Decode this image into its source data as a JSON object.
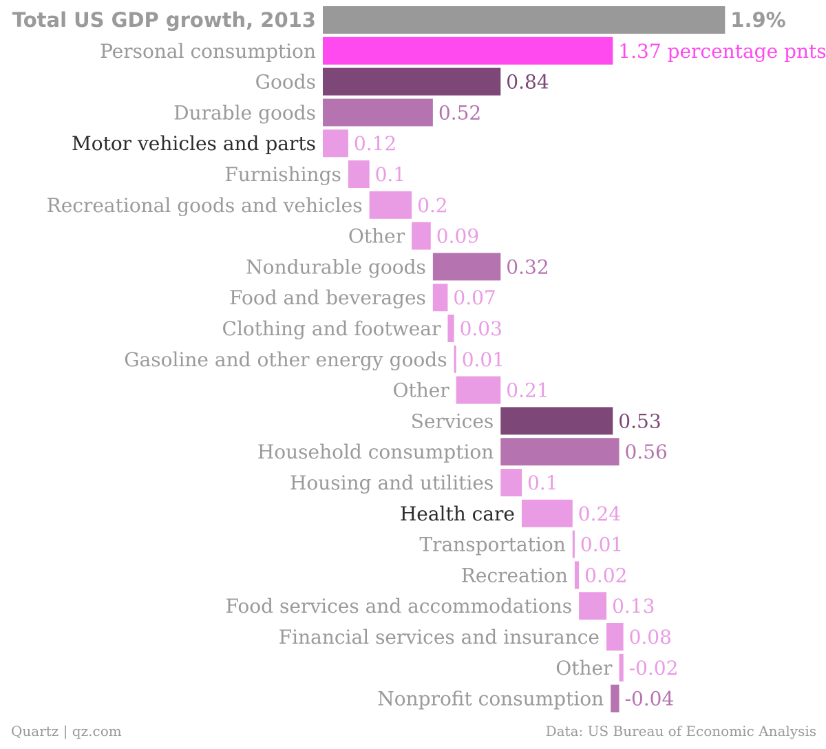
{
  "chart_data": {
    "type": "bar",
    "orientation": "horizontal",
    "layout": "waterfall",
    "rows": [
      {
        "label": "Total US GDP growth, 2013",
        "value": 1.9,
        "value_label": "1.9%",
        "level": "total",
        "offset": 0
      },
      {
        "label": "Personal consumption",
        "value": 1.37,
        "value_label": "1.37 percentage pnts",
        "level": "level0",
        "offset": 0
      },
      {
        "label": "Goods",
        "value": 0.84,
        "value_label": "0.84",
        "level": "level1",
        "offset": 0
      },
      {
        "label": "Durable goods",
        "value": 0.52,
        "value_label": "0.52",
        "level": "level2",
        "offset": 0
      },
      {
        "label": "Motor vehicles and parts",
        "value": 0.12,
        "value_label": "0.12",
        "level": "level3",
        "offset": 0,
        "highlight": true
      },
      {
        "label": "Furnishings",
        "value": 0.1,
        "value_label": "0.1",
        "level": "level3",
        "offset": 0.12
      },
      {
        "label": "Recreational goods and vehicles",
        "value": 0.2,
        "value_label": "0.2",
        "level": "level3",
        "offset": 0.22
      },
      {
        "label": "Other",
        "value": 0.09,
        "value_label": "0.09",
        "level": "level3",
        "offset": 0.42
      },
      {
        "label": "Nondurable goods",
        "value": 0.32,
        "value_label": "0.32",
        "level": "level2",
        "offset": 0.52
      },
      {
        "label": "Food and beverages",
        "value": 0.07,
        "value_label": "0.07",
        "level": "level3",
        "offset": 0.52
      },
      {
        "label": "Clothing and footwear",
        "value": 0.03,
        "value_label": "0.03",
        "level": "level3",
        "offset": 0.59
      },
      {
        "label": "Gasoline and other energy goods",
        "value": 0.01,
        "value_label": "0.01",
        "level": "level3",
        "offset": 0.62
      },
      {
        "label": "Other",
        "value": 0.21,
        "value_label": "0.21",
        "level": "level3",
        "offset": 0.63
      },
      {
        "label": "Services",
        "value": 0.53,
        "value_label": "0.53",
        "level": "level1",
        "offset": 0.84
      },
      {
        "label": "Household consumption",
        "value": 0.56,
        "value_label": "0.56",
        "level": "level2",
        "offset": 0.84
      },
      {
        "label": "Housing and utilities",
        "value": 0.1,
        "value_label": "0.1",
        "level": "level3",
        "offset": 0.84
      },
      {
        "label": "Health care",
        "value": 0.24,
        "value_label": "0.24",
        "level": "level3",
        "offset": 0.94,
        "highlight": true
      },
      {
        "label": "Transportation",
        "value": 0.01,
        "value_label": "0.01",
        "level": "level3",
        "offset": 1.18
      },
      {
        "label": "Recreation",
        "value": 0.02,
        "value_label": "0.02",
        "level": "level3",
        "offset": 1.19
      },
      {
        "label": "Food services and accommodations",
        "value": 0.13,
        "value_label": "0.13",
        "level": "level3",
        "offset": 1.21
      },
      {
        "label": "Financial services and insurance",
        "value": 0.08,
        "value_label": "0.08",
        "level": "level3",
        "offset": 1.34
      },
      {
        "label": "Other",
        "value": -0.02,
        "value_label": "-0.02",
        "level": "level3",
        "offset": 1.42
      },
      {
        "label": "Nonprofit consumption",
        "value": -0.04,
        "value_label": "-0.04",
        "level": "level2",
        "offset": 1.4
      }
    ],
    "colors": {
      "total": "#999999",
      "level0": "#ff4af0",
      "level1": "#7d4878",
      "level2": "#b574b0",
      "level3": "#e99be3",
      "label_default": "#9a9a9a",
      "label_highlight": "#2b2b2b"
    },
    "grid": false,
    "legend": "none"
  },
  "footer": {
    "source_left": "Quartz | qz.com",
    "source_right": "Data: US Bureau of Economic Analysis"
  }
}
